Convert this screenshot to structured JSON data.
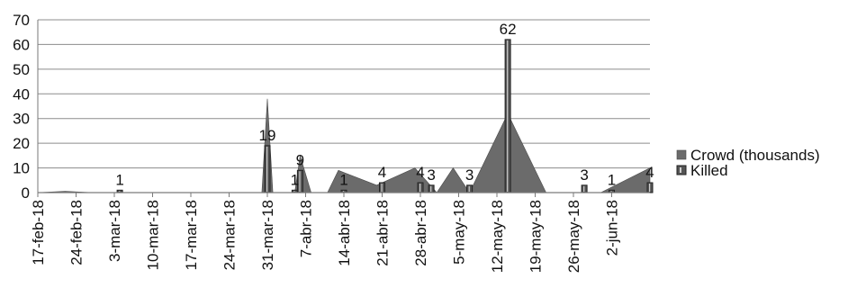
{
  "chart_data": {
    "type": "area",
    "x_start": "17-feb-18",
    "x_end": "9-jun-18",
    "x_tick_labels": [
      "17-feb-18",
      "24-feb-18",
      "3-mar-18",
      "10-mar-18",
      "17-mar-18",
      "24-mar-18",
      "31-mar-18",
      "7-abr-18",
      "14-abr-18",
      "21-abr-18",
      "28-abr-18",
      "5-may-18",
      "12-may-18",
      "19-may-18",
      "26-may-18",
      "2-jun-18"
    ],
    "ylim": [
      0,
      70
    ],
    "y_ticks": [
      0,
      10,
      20,
      30,
      40,
      50,
      60,
      70
    ],
    "grid": true,
    "legend_position": "right",
    "series": [
      {
        "name": "Crowd (thousands)",
        "type": "area",
        "color": "#6b6b6b",
        "points": [
          {
            "date": "17-feb-18",
            "value": 0
          },
          {
            "date": "22-feb-18",
            "value": 0.5
          },
          {
            "date": "27-feb-18",
            "value": 0
          },
          {
            "date": "30-mar-18",
            "value": 0
          },
          {
            "date": "31-mar-18",
            "value": 38
          },
          {
            "date": "1-abr-18",
            "value": 0
          },
          {
            "date": "5-abr-18",
            "value": 0
          },
          {
            "date": "6-abr-18",
            "value": 15
          },
          {
            "date": "8-abr-18",
            "value": 0
          },
          {
            "date": "11-abr-18",
            "value": 0
          },
          {
            "date": "13-abr-18",
            "value": 9
          },
          {
            "date": "20-abr-18",
            "value": 3
          },
          {
            "date": "27-abr-18",
            "value": 10
          },
          {
            "date": "1-may-18",
            "value": 0
          },
          {
            "date": "4-may-18",
            "value": 10
          },
          {
            "date": "7-may-18",
            "value": 0
          },
          {
            "date": "14-may-18",
            "value": 32
          },
          {
            "date": "21-may-18",
            "value": 0
          },
          {
            "date": "31-may-18",
            "value": 0
          },
          {
            "date": "9-jun-18",
            "value": 10
          },
          {
            "date": "9-jun-18",
            "value": 0
          }
        ]
      },
      {
        "name": "Killed",
        "type": "bar",
        "color": "#555555",
        "points": [
          {
            "date": "4-mar-18",
            "value": 1,
            "label": "1"
          },
          {
            "date": "31-mar-18",
            "value": 19,
            "label": "19"
          },
          {
            "date": "5-abr-18",
            "value": 1,
            "label": "1"
          },
          {
            "date": "6-abr-18",
            "value": 9,
            "label": "9"
          },
          {
            "date": "14-abr-18",
            "value": 1,
            "label": "1"
          },
          {
            "date": "21-abr-18",
            "value": 4,
            "label": "4"
          },
          {
            "date": "28-abr-18",
            "value": 4,
            "label": "4"
          },
          {
            "date": "30-abr-18",
            "value": 3,
            "label": "3"
          },
          {
            "date": "7-may-18",
            "value": 3,
            "label": "3"
          },
          {
            "date": "14-may-18",
            "value": 62,
            "label": "62"
          },
          {
            "date": "28-may-18",
            "value": 3,
            "label": "3"
          },
          {
            "date": "2-jun-18",
            "value": 1,
            "label": "1"
          },
          {
            "date": "9-jun-18",
            "value": 4,
            "label": "4"
          }
        ]
      }
    ]
  }
}
